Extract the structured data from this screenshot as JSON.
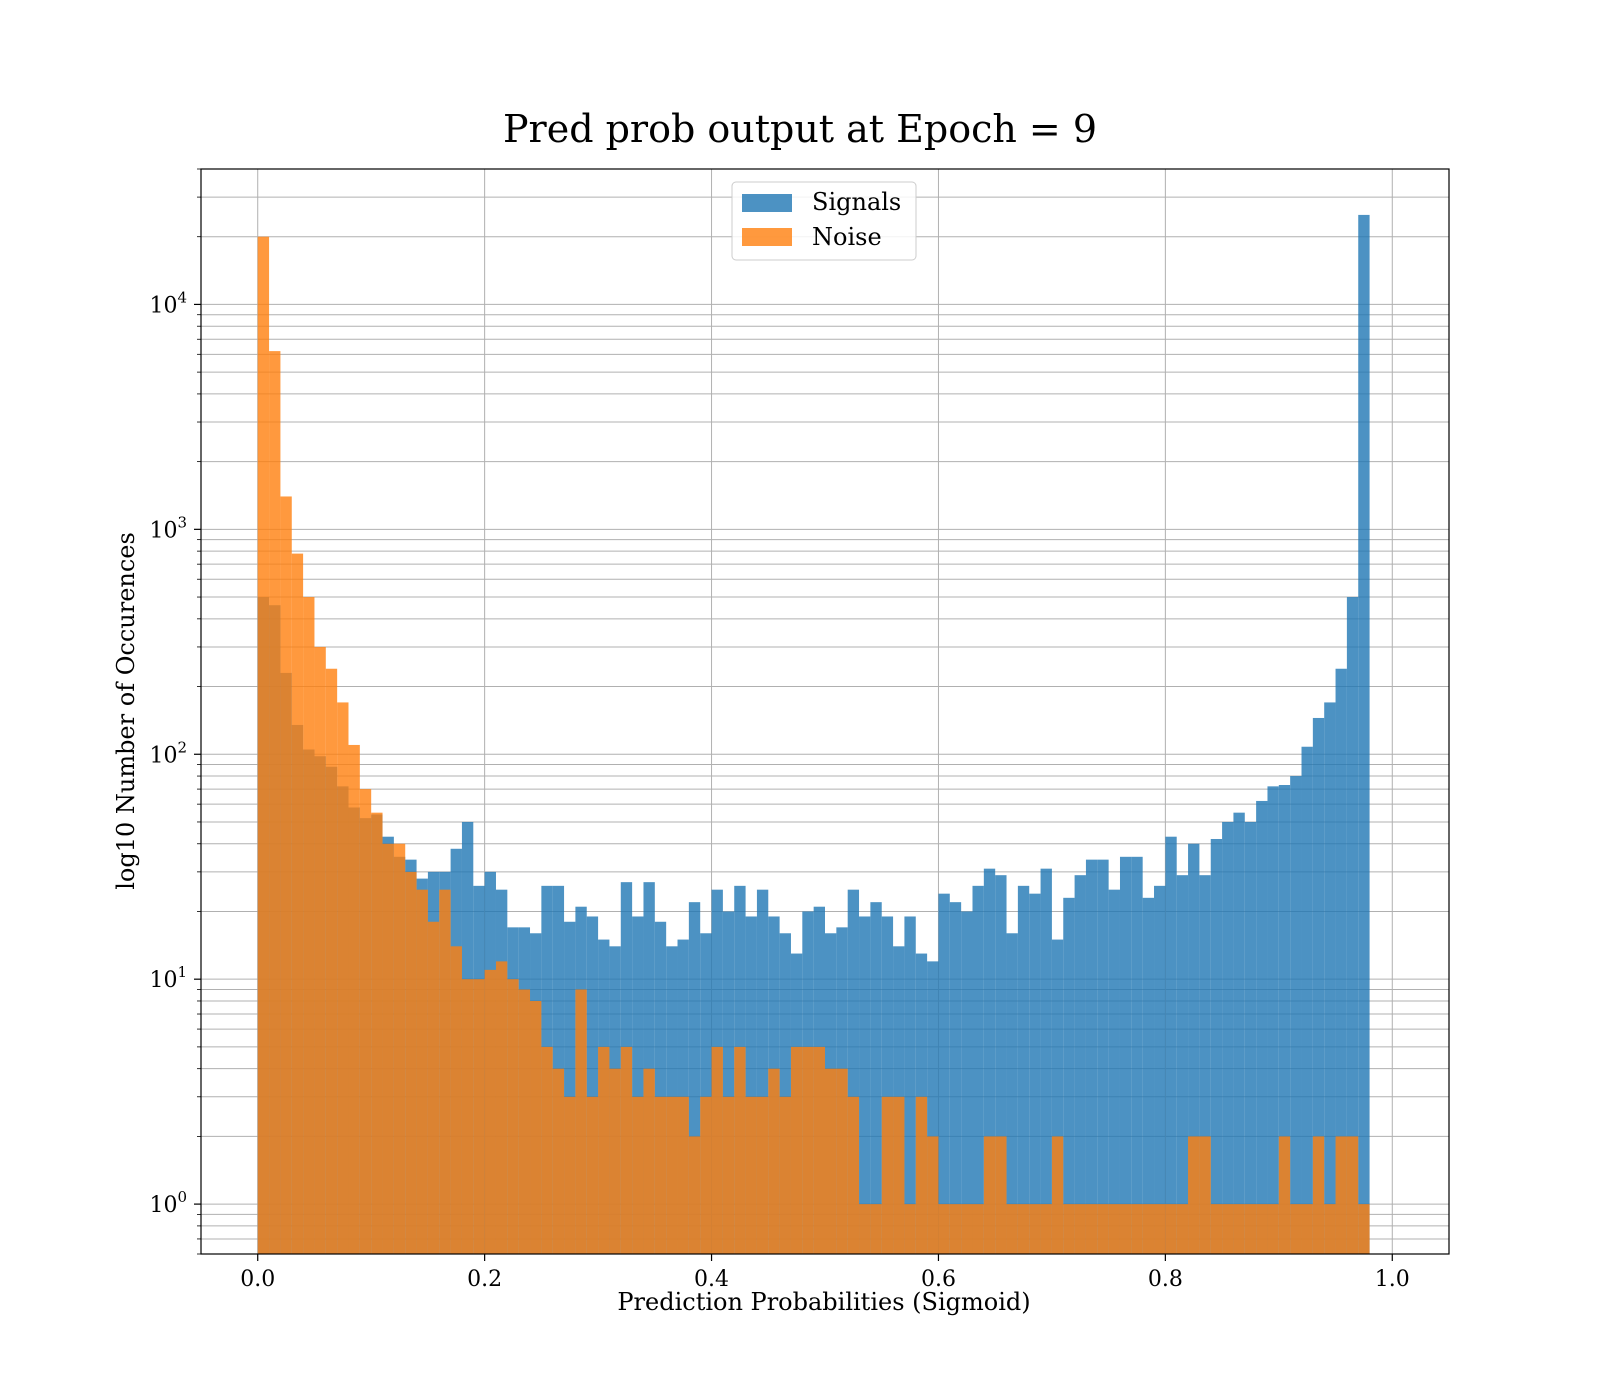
{
  "chart_data": {
    "type": "bar",
    "title": "Pred prob output at Epoch = 9",
    "xlabel": "Prediction Probabilities (Sigmoid)",
    "ylabel": "log10 Number of Occurences",
    "y_scale": "log",
    "xlim": [
      -0.05,
      1.05
    ],
    "ylim": [
      0.6,
      40000
    ],
    "grid": "on (major and minor)",
    "legend_position": "top-center",
    "x_ticks": [
      "0.0",
      "0.2",
      "0.4",
      "0.6",
      "0.8",
      "1.0"
    ],
    "y_ticks": [
      {
        "base": "10",
        "exp": "0"
      },
      {
        "base": "10",
        "exp": "1"
      },
      {
        "base": "10",
        "exp": "2"
      },
      {
        "base": "10",
        "exp": "3"
      },
      {
        "base": "10",
        "exp": "4"
      }
    ],
    "bins": {
      "start": 0.0,
      "end": 1.0,
      "count": 100
    },
    "series": [
      {
        "name": "Signals",
        "color": "#1f77b4",
        "values": [
          500,
          460,
          230,
          135,
          105,
          98,
          88,
          72,
          58,
          52,
          54,
          43,
          35,
          34,
          28,
          30,
          30,
          38,
          50,
          26,
          30,
          25,
          17,
          17,
          16,
          26,
          26,
          18,
          21,
          19,
          15,
          14,
          27,
          19,
          27,
          18,
          14,
          15,
          22,
          16,
          25,
          20,
          26,
          19,
          25,
          19,
          16,
          13,
          20,
          21,
          16,
          17,
          25,
          19,
          22,
          19,
          14,
          19,
          13,
          12,
          24,
          22,
          20,
          26,
          31,
          29,
          16,
          26,
          24,
          31,
          15,
          23,
          29,
          34,
          34,
          25,
          35,
          35,
          23,
          26,
          43,
          29,
          40,
          29,
          42,
          50,
          55,
          50,
          62,
          72,
          73,
          80,
          108,
          145,
          170,
          240,
          500,
          25000,
          0,
          0
        ]
      },
      {
        "name": "Noise",
        "color": "#ff7f0e",
        "values": [
          20000,
          6200,
          1400,
          780,
          500,
          300,
          240,
          170,
          110,
          70,
          55,
          40,
          40,
          30,
          25,
          18,
          25,
          14,
          10,
          10,
          11,
          12,
          10,
          9,
          8,
          5,
          4,
          3,
          9,
          3,
          5,
          4,
          5,
          3,
          4,
          3,
          3,
          3,
          2,
          3,
          5,
          3,
          5,
          3,
          3,
          4,
          3,
          5,
          5,
          5,
          4,
          4,
          3,
          1,
          1,
          3,
          3,
          1,
          3,
          2,
          1,
          1,
          1,
          1,
          2,
          2,
          1,
          1,
          1,
          1,
          2,
          1,
          1,
          1,
          1,
          1,
          1,
          1,
          1,
          1,
          1,
          1,
          2,
          2,
          1,
          1,
          1,
          1,
          1,
          1,
          2,
          1,
          1,
          2,
          1,
          2,
          2,
          1,
          0,
          0
        ]
      }
    ]
  }
}
